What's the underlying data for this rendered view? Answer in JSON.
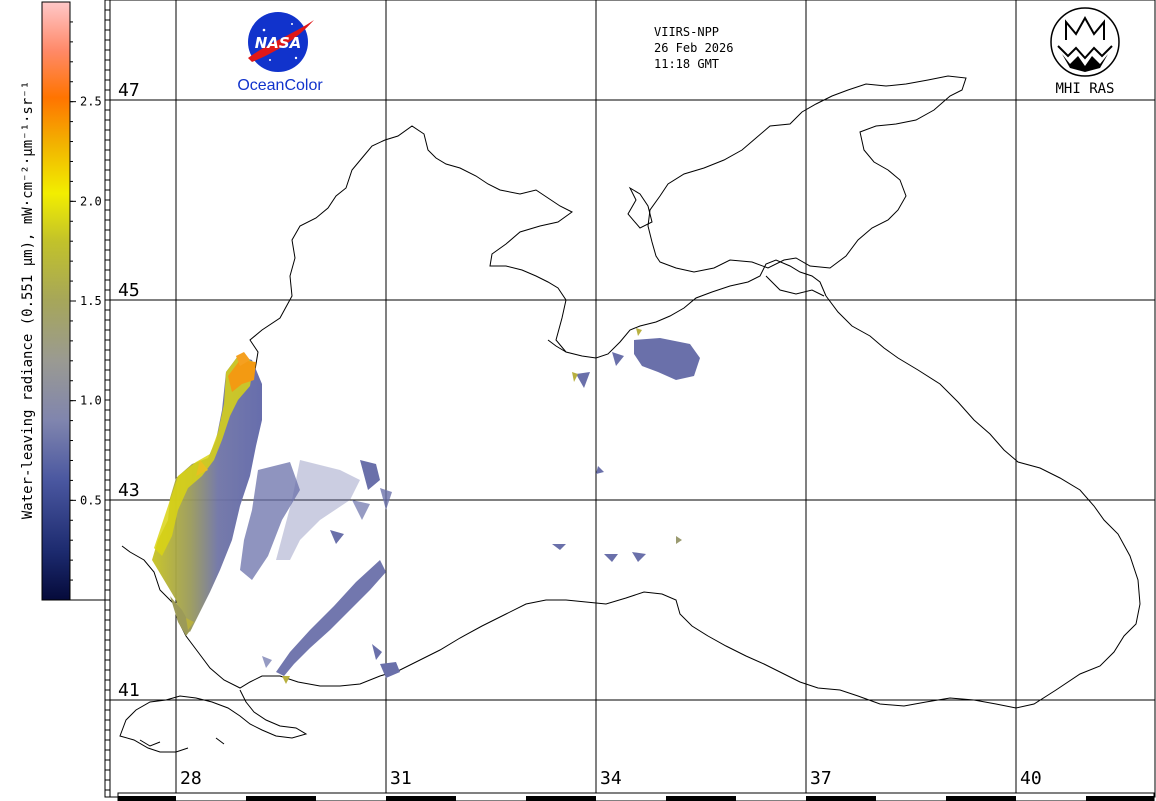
{
  "header": {
    "satellite": "VIIRS-NPP",
    "date": "26 Feb 2026",
    "time": "11:18 GMT"
  },
  "logos": {
    "nasa_text": "NASA",
    "oceancolor_text": "OceanColor",
    "mhi_text": "MHI RAS"
  },
  "colorbar": {
    "title": "Water-leaving radiance (0.551 μm), mW·cm⁻²·μm⁻¹·sr⁻¹",
    "ticks": [
      "0.5",
      "1.0",
      "1.5",
      "2.0",
      "2.5"
    ],
    "min": 0,
    "max": 3.0
  },
  "grid": {
    "lat_labels": [
      "47",
      "45",
      "43",
      "41"
    ],
    "lon_labels": [
      "28",
      "31",
      "34",
      "37",
      "40"
    ]
  },
  "colors": {
    "coast": "#000000",
    "grid": "#000000",
    "low": "#1c1f6a",
    "mid": "#6a6fa8",
    "high_yellow": "#e6d800",
    "high_orange": "#f39a12"
  }
}
